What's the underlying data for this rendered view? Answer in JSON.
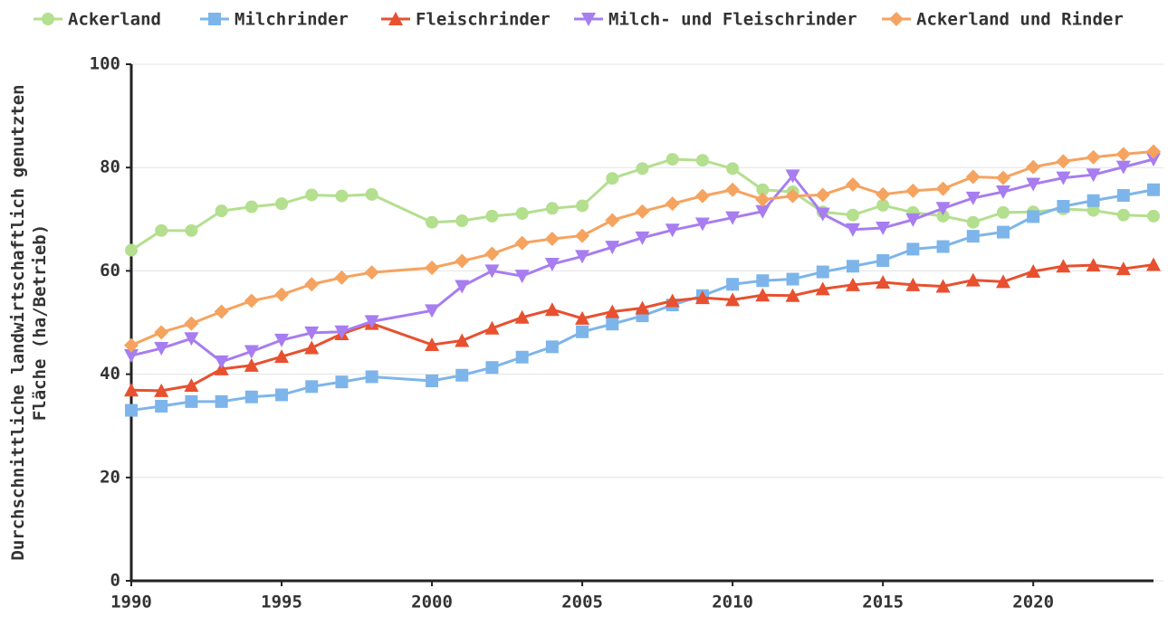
{
  "chart_data": {
    "type": "line",
    "ylabel": [
      "Durchschnittliche landwirtschaftlich genutzten",
      "Fläche (ha/Betrieb)"
    ],
    "x": [
      1990,
      1991,
      1992,
      1993,
      1994,
      1995,
      1996,
      1997,
      1998,
      2000,
      2001,
      2002,
      2003,
      2004,
      2005,
      2006,
      2007,
      2008,
      2009,
      2010,
      2011,
      2012,
      2013,
      2014,
      2015,
      2016,
      2017,
      2018,
      2019,
      2020,
      2021,
      2022,
      2023,
      2024
    ],
    "series": [
      {
        "name": "Ackerland",
        "color": "#b3df8e",
        "marker": "circle",
        "values": [
          64,
          67.8,
          67.8,
          71.6,
          72.4,
          73,
          74.7,
          74.5,
          74.8,
          69.4,
          69.7,
          70.6,
          71.1,
          72.1,
          72.6,
          77.9,
          79.8,
          81.6,
          81.4,
          79.8,
          75.7,
          75.3,
          71.4,
          70.8,
          72.7,
          71.3,
          70.6,
          69.4,
          71.3,
          71.4,
          72,
          71.7,
          70.8,
          70.6
        ]
      },
      {
        "name": "Milchrinder",
        "color": "#7db5ea",
        "marker": "square",
        "values": [
          33,
          33.8,
          34.7,
          34.7,
          35.6,
          36,
          37.6,
          38.5,
          39.5,
          38.7,
          39.8,
          41.3,
          43.3,
          45.3,
          48.2,
          49.7,
          51.3,
          53.4,
          55.2,
          57.4,
          58.1,
          58.4,
          59.8,
          60.9,
          62,
          64.2,
          64.7,
          66.7,
          67.5,
          70.5,
          72.5,
          73.6,
          74.6,
          75.7
        ]
      },
      {
        "name": "Fleischrinder",
        "color": "#e8502f",
        "marker": "triangle",
        "values": [
          36.9,
          36.8,
          37.8,
          41,
          41.7,
          43.4,
          45.1,
          47.8,
          49.8,
          45.7,
          46.5,
          48.9,
          51,
          52.5,
          50.8,
          52.1,
          52.8,
          54.2,
          54.8,
          54.4,
          55.3,
          55.2,
          56.5,
          57.3,
          57.8,
          57.3,
          57,
          58.2,
          57.9,
          59.9,
          60.9,
          61.1,
          60.4,
          61.2
        ]
      },
      {
        "name": "Milch- und Fleischrinder",
        "color": "#a77df0",
        "marker": "triangle-down",
        "values": [
          43.6,
          45,
          46.9,
          42.4,
          44.4,
          46.6,
          48,
          48.2,
          50.2,
          52.3,
          57,
          60,
          59,
          61.3,
          62.8,
          64.6,
          66.4,
          67.9,
          69.1,
          70.3,
          71.5,
          78.4,
          71,
          68,
          68.3,
          69.9,
          72.1,
          74.1,
          75.3,
          76.8,
          78,
          78.6,
          80.1,
          81.6
        ]
      },
      {
        "name": "Ackerland und Rinder",
        "color": "#f5a35f",
        "marker": "diamond",
        "values": [
          45.6,
          48.1,
          49.8,
          52.1,
          54.2,
          55.4,
          57.4,
          58.7,
          59.7,
          60.6,
          61.9,
          63.3,
          65.4,
          66.2,
          66.8,
          69.8,
          71.5,
          73,
          74.5,
          75.7,
          73.8,
          74.5,
          74.7,
          76.7,
          74.8,
          75.5,
          75.9,
          78.2,
          78,
          80.1,
          81.2,
          82,
          82.6,
          83.1
        ]
      }
    ],
    "xlim": [
      1990,
      2024
    ],
    "xticks": [
      1990,
      1995,
      2000,
      2005,
      2010,
      2015,
      2020
    ],
    "ylim": [
      0,
      100
    ],
    "yticks": [
      0,
      20,
      40,
      60,
      80,
      100
    ],
    "grid": true
  }
}
